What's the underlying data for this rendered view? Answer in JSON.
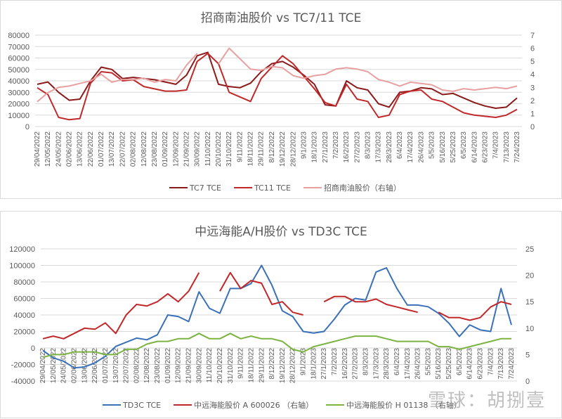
{
  "chart_data": [
    {
      "type": "line",
      "title": "招商南油股价 vs TC7/11 TCE",
      "xlabel": "",
      "ylabel_left": "",
      "ylabel_right": "",
      "ylim_left": [
        0,
        80000
      ],
      "ylim_right": [
        0,
        7
      ],
      "yticks_left": [
        "80000",
        "70000",
        "60000",
        "50000",
        "40000",
        "30000",
        "20000",
        "10000",
        "0"
      ],
      "yticks_right": [
        "7",
        "6",
        "5",
        "4",
        "3",
        "2",
        "1",
        "0"
      ],
      "grid": true,
      "legend_position": "bottom",
      "categories": [
        "29/04/2022",
        "12/05/2022",
        "24/05/2022",
        "02/06/2022",
        "13/06/2022",
        "22/06/2022",
        "01/07/2022",
        "13/07/2022",
        "22/07/2022",
        "02/08/2022",
        "12/08/2022",
        "23/08/2022",
        "01/09/2022",
        "12/09/2022",
        "21/09/2022",
        "30/09/2022",
        "11/10/2022",
        "20/10/2022",
        "31/10/2022",
        "9/11/2022",
        "18/11/2022",
        "29/11/2022",
        "8/12/2022",
        "19/12/2022",
        "28/12/2022",
        "9/1/2023",
        "18/1/2023",
        "27/1/2023",
        "7/2/2023",
        "16/2/2023",
        "27/2/2023",
        "8/3/2023",
        "17/3/2023",
        "28/3/2023",
        "6/4/2023",
        "17/4/2023",
        "26/4/2023",
        "5/5/2023",
        "5/16/2023",
        "5/25/2023",
        "6/5/2023",
        "6/14/2023",
        "6/23/2023",
        "7/4/2023",
        "7/13/2023",
        "7/24/2023"
      ],
      "series": [
        {
          "name": "TC7 TCE",
          "axis": "left",
          "color": "#8b1a1a",
          "values": [
            37000,
            39000,
            30000,
            23000,
            24000,
            40000,
            52000,
            50000,
            42000,
            43000,
            42000,
            41000,
            39000,
            37000,
            45000,
            62000,
            65000,
            37000,
            35000,
            34000,
            38000,
            48000,
            55000,
            57000,
            52000,
            45000,
            37000,
            19000,
            18000,
            40000,
            34000,
            32000,
            20000,
            17000,
            30000,
            31000,
            34000,
            33000,
            28000,
            29000,
            25000,
            21000,
            18000,
            16000,
            17000,
            25000
          ]
        },
        {
          "name": "TC11 TCE",
          "axis": "left",
          "color": "#c0282a",
          "values": [
            34000,
            28000,
            8000,
            6000,
            7000,
            38000,
            48000,
            47000,
            40000,
            41000,
            35000,
            33000,
            31000,
            31000,
            32000,
            57000,
            64000,
            55000,
            30000,
            26000,
            22000,
            42000,
            52000,
            62000,
            55000,
            44000,
            33000,
            21000,
            18000,
            37000,
            24000,
            22000,
            8000,
            10000,
            28000,
            31000,
            32000,
            24000,
            22000,
            17000,
            12000,
            10000,
            9000,
            8000,
            10000,
            15000
          ]
        },
        {
          "name": "招商南油股价（右轴）",
          "axis": "right",
          "color": "#e8a0a0",
          "values": [
            1.9,
            2.6,
            3.0,
            3.1,
            3.3,
            3.5,
            4.0,
            3.4,
            3.6,
            3.6,
            3.7,
            3.4,
            3.6,
            3.5,
            4.7,
            5.6,
            null,
            4.8,
            6.0,
            5.2,
            4.4,
            4.3,
            4.6,
            4.5,
            3.9,
            3.7,
            3.9,
            4.0,
            4.4,
            4.5,
            4.4,
            4.2,
            3.6,
            3.4,
            3.1,
            3.4,
            3.3,
            3.2,
            2.8,
            2.7,
            2.9,
            2.8,
            2.9,
            3.0,
            2.9,
            3.1
          ]
        }
      ]
    },
    {
      "type": "line",
      "title": "中远海能A/H股价 vs TD3C TCE",
      "xlabel": "",
      "ylabel_left": "",
      "ylabel_right": "",
      "ylim_left": [
        -40000,
        120000
      ],
      "ylim_right": [
        0,
        25
      ],
      "yticks_left": [
        "120000",
        "100000",
        "80000",
        "60000",
        "40000",
        "20000",
        "0",
        "-20000",
        "-40000"
      ],
      "yticks_right": [
        "25",
        "20",
        "15",
        "10",
        "5",
        "0"
      ],
      "grid": true,
      "legend_position": "bottom",
      "categories": [
        "29/04/2022",
        "12/05/2022",
        "24/05/2022",
        "02/06/2022",
        "13/06/2022",
        "22/06/2022",
        "01/07/2022",
        "13/07/2022",
        "22/07/2022",
        "02/08/2022",
        "12/08/2022",
        "23/08/2022",
        "01/09/2022",
        "12/09/2022",
        "21/09/2022",
        "30/09/2022",
        "11/10/2022",
        "20/10/2022",
        "31/10/2022",
        "9/11/2022",
        "18/11/2022",
        "29/11/2022",
        "8/12/2022",
        "19/12/2022",
        "28/12/2022",
        "9/1/2023",
        "18/1/2023",
        "27/1/2023",
        "7/2/2023",
        "16/2/2023",
        "27/2/2023",
        "8/3/2023",
        "17/3/2023",
        "28/3/2023",
        "6/4/2023",
        "17/4/2023",
        "26/4/2023",
        "5/5/2023",
        "5/16/2023",
        "5/25/2023",
        "6/5/2023",
        "6/14/2023",
        "6/23/2023",
        "7/4/2023",
        "7/13/2023",
        "7/24/2023"
      ],
      "series": [
        {
          "name": "TD3C TCE",
          "axis": "left",
          "color": "#3a70b8",
          "values": [
            -3000,
            -12000,
            -16000,
            -24000,
            -23000,
            -18000,
            -10000,
            2000,
            7000,
            12000,
            10000,
            16000,
            40000,
            38000,
            32000,
            68000,
            48000,
            42000,
            72000,
            72000,
            78000,
            100000,
            76000,
            45000,
            38000,
            20000,
            18000,
            20000,
            35000,
            52000,
            60000,
            58000,
            92000,
            97000,
            72000,
            52000,
            52000,
            50000,
            42000,
            30000,
            14000,
            28000,
            22000,
            20000,
            72000,
            28000
          ]
        },
        {
          "name": "中远海能股价 A 600026（右轴）",
          "axis": "right",
          "color": "#c0282a",
          "values": [
            8,
            8.5,
            8,
            9,
            10,
            9.8,
            11,
            9,
            12.5,
            14.5,
            14.2,
            15,
            16.5,
            15,
            17,
            20.5,
            null,
            17,
            20.5,
            17.5,
            19,
            18.5,
            14.5,
            15,
            13,
            12.5,
            null,
            15,
            16,
            16,
            15,
            15,
            15.5,
            14.5,
            14,
            13.5,
            13,
            null,
            13,
            12,
            12,
            11.5,
            12,
            14,
            15,
            14.5
          ]
        },
        {
          "name": "中远海能股价 H 01138（右轴）",
          "axis": "right",
          "color": "#7cb342",
          "values": [
            4.5,
            5,
            5,
            5.5,
            5.5,
            5.5,
            5,
            5,
            6,
            6,
            7,
            7.5,
            7.5,
            8,
            8,
            9,
            8,
            8,
            9,
            8,
            8.5,
            8,
            8,
            7.5,
            6,
            5.5,
            6.5,
            7,
            7.5,
            8,
            8.5,
            8.5,
            8.5,
            8,
            7.5,
            7.5,
            7.5,
            7.5,
            6.5,
            6.5,
            6,
            6.5,
            7,
            7.5,
            8,
            8
          ]
        }
      ]
    }
  ],
  "chart1": {
    "title": "招商南油股价  vs TC7/11  TCE",
    "legend": [
      {
        "label": "TC7 TCE",
        "color": "#8b1a1a"
      },
      {
        "label": "TC11 TCE",
        "color": "#c0282a"
      },
      {
        "label": "招商南油股价（右轴）",
        "color": "#e8a0a0"
      }
    ]
  },
  "chart2": {
    "title": "中远海能A/H股价  vs TD3C TCE",
    "legend": [
      {
        "label": "TD3C TCE",
        "color": "#3a70b8"
      },
      {
        "label": "中远海能股价 A 600026 （右轴）",
        "color": "#c0282a"
      },
      {
        "label": "中远海能股价 H 01138 （右轴）",
        "color": "#7cb342"
      }
    ]
  },
  "watermark": "雪球：胡捌壹"
}
